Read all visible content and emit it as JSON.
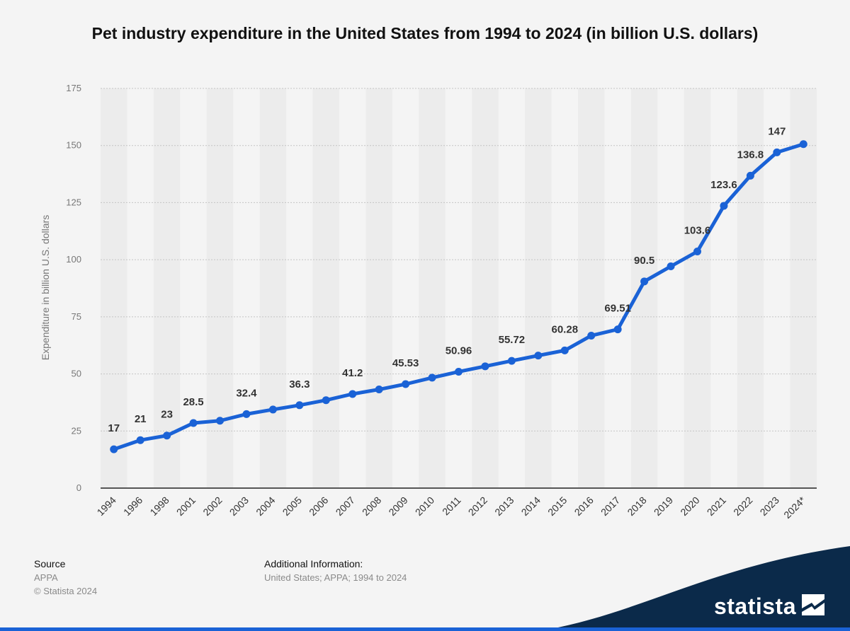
{
  "chart_data": {
    "type": "line",
    "title": "Pet industry expenditure in the United States from 1994 to 2024 (in billion U.S. dollars)",
    "xlabel": "",
    "ylabel": "Expenditure in billion U.S. dollars",
    "categories": [
      "1994",
      "1996",
      "1998",
      "2001",
      "2002",
      "2003",
      "2004",
      "2005",
      "2006",
      "2007",
      "2008",
      "2009",
      "2010",
      "2011",
      "2012",
      "2013",
      "2014",
      "2015",
      "2016",
      "2017",
      "2018",
      "2019",
      "2020",
      "2021",
      "2022",
      "2023",
      "2024*"
    ],
    "series": [
      {
        "values": [
          17,
          21,
          23,
          28.5,
          29.5,
          32.4,
          34.4,
          36.3,
          38.5,
          41.2,
          43.2,
          45.53,
          48.35,
          50.96,
          53.33,
          55.72,
          58.04,
          60.28,
          66.75,
          69.51,
          90.5,
          97.1,
          103.6,
          123.6,
          136.8,
          147,
          150.6
        ],
        "color": "#1a62d6"
      }
    ],
    "data_labels": [
      {
        "index": 0,
        "text": "17"
      },
      {
        "index": 1,
        "text": "21"
      },
      {
        "index": 2,
        "text": "23"
      },
      {
        "index": 3,
        "text": "28.5"
      },
      {
        "index": 5,
        "text": "32.4"
      },
      {
        "index": 7,
        "text": "36.3"
      },
      {
        "index": 9,
        "text": "41.2"
      },
      {
        "index": 11,
        "text": "45.53"
      },
      {
        "index": 13,
        "text": "50.96"
      },
      {
        "index": 15,
        "text": "55.72"
      },
      {
        "index": 17,
        "text": "60.28"
      },
      {
        "index": 19,
        "text": "69.51"
      },
      {
        "index": 20,
        "text": "90.5"
      },
      {
        "index": 22,
        "text": "103.6"
      },
      {
        "index": 23,
        "text": "123.6"
      },
      {
        "index": 24,
        "text": "136.8"
      },
      {
        "index": 25,
        "text": "147"
      }
    ],
    "ylim": [
      0,
      175
    ],
    "yticks": [
      0,
      25,
      50,
      75,
      100,
      125,
      150,
      175
    ],
    "grid": true,
    "legend": "none"
  },
  "footer": {
    "source_heading": "Source",
    "source_name": "APPA",
    "copyright": "© Statista 2024",
    "info_heading": "Additional Information:",
    "info_text": "United States; APPA; 1994 to 2024"
  },
  "brand": {
    "name": "statista",
    "color": "#0b2a4a"
  }
}
